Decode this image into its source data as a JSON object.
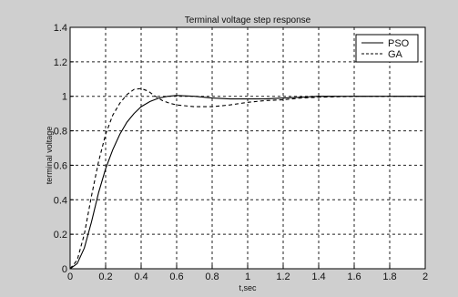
{
  "chart_data": {
    "type": "line",
    "title": "Terminal voltage step response",
    "xlabel": "t,sec",
    "ylabel": "terminal voltage",
    "xlim": [
      0,
      2
    ],
    "ylim": [
      0,
      1.4
    ],
    "xticks": [
      0,
      0.2,
      0.4,
      0.6,
      0.8,
      1,
      1.2,
      1.4,
      1.6,
      1.8,
      2
    ],
    "xtick_labels": [
      "0",
      "0.2",
      "0.4",
      "0.6",
      "0.8",
      "1",
      "1.2",
      "1.4",
      "1.6",
      "1.8",
      "2"
    ],
    "yticks": [
      0,
      0.2,
      0.4,
      0.6,
      0.8,
      1,
      1.2,
      1.4
    ],
    "ytick_labels": [
      "0",
      "0.2",
      "0.4",
      "0.6",
      "0.8",
      "1",
      "1.2",
      "1.4"
    ],
    "grid": true,
    "legend_position": "top-right",
    "series": [
      {
        "name": "PSO",
        "style": "solid",
        "color": "#000000",
        "x": [
          0,
          0.04,
          0.08,
          0.12,
          0.16,
          0.2,
          0.24,
          0.28,
          0.32,
          0.36,
          0.4,
          0.45,
          0.5,
          0.55,
          0.6,
          0.7,
          0.8,
          0.9,
          1.0,
          1.1,
          1.2,
          1.3,
          1.4,
          1.6,
          1.8,
          2.0
        ],
        "y": [
          0,
          0.03,
          0.12,
          0.27,
          0.44,
          0.58,
          0.69,
          0.78,
          0.85,
          0.9,
          0.94,
          0.97,
          0.99,
          1.0,
          1.005,
          1.0,
          0.99,
          0.985,
          0.985,
          0.985,
          0.99,
          0.995,
          1.0,
          1.0,
          1.0,
          1.0
        ]
      },
      {
        "name": "GA",
        "style": "dashed",
        "color": "#000000",
        "x": [
          0,
          0.04,
          0.08,
          0.12,
          0.16,
          0.2,
          0.24,
          0.28,
          0.32,
          0.36,
          0.4,
          0.44,
          0.48,
          0.52,
          0.56,
          0.6,
          0.7,
          0.8,
          0.9,
          1.0,
          1.1,
          1.2,
          1.3,
          1.4,
          1.6,
          1.8,
          2.0
        ],
        "y": [
          0,
          0.05,
          0.2,
          0.42,
          0.62,
          0.78,
          0.89,
          0.96,
          1.01,
          1.04,
          1.045,
          1.03,
          1.0,
          0.975,
          0.96,
          0.95,
          0.94,
          0.94,
          0.95,
          0.965,
          0.975,
          0.98,
          0.99,
          0.995,
          1.0,
          1.0,
          1.0
        ]
      }
    ]
  }
}
